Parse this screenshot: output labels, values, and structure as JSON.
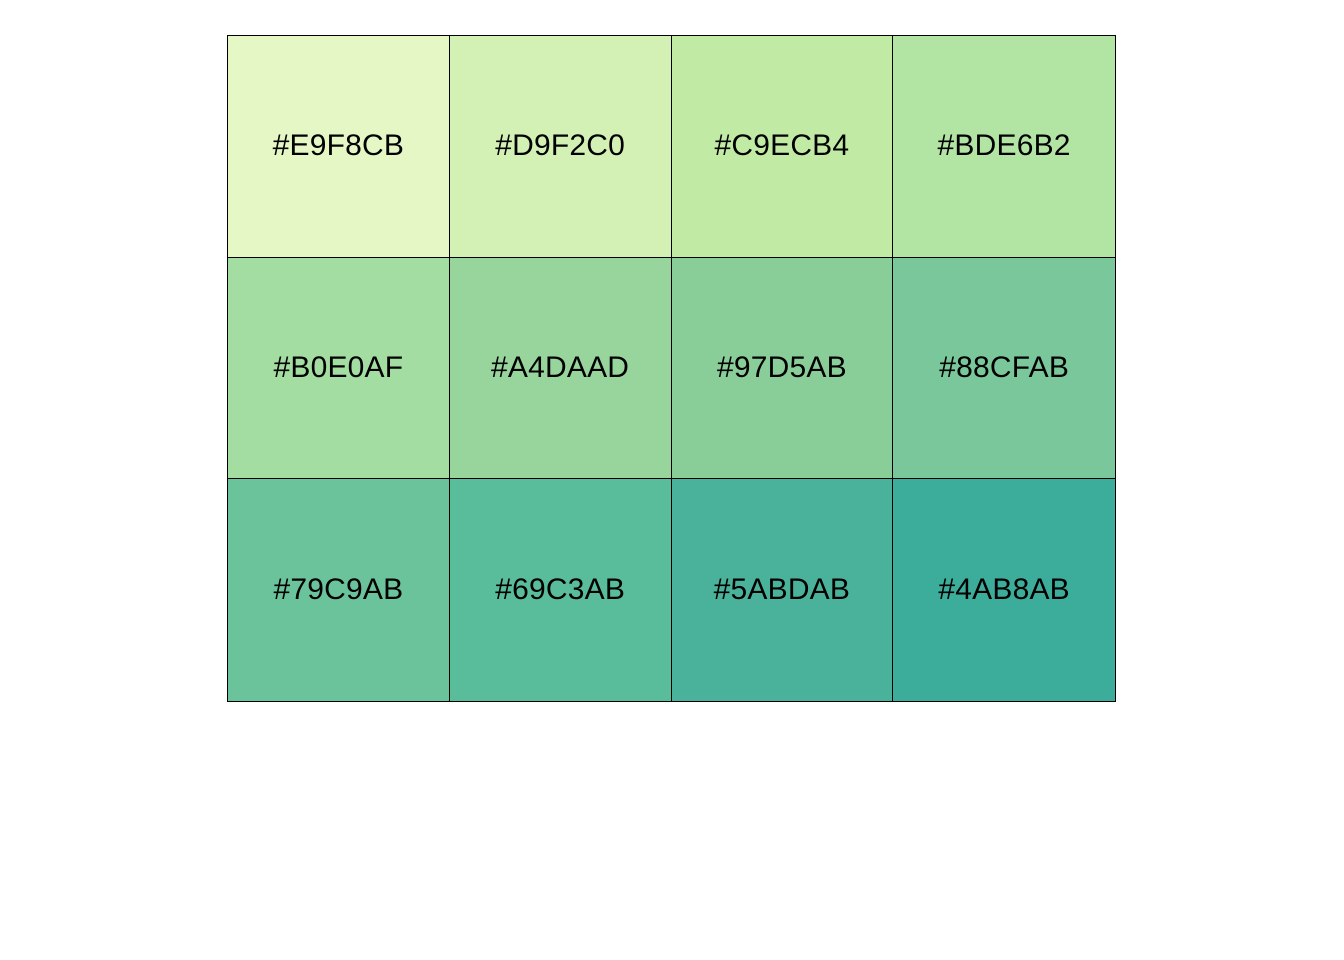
{
  "palette": {
    "swatches": [
      {
        "label": "#E9F8CB",
        "color": "#E5F7C4"
      },
      {
        "label": "#D9F2C0",
        "color": "#D3F1B4"
      },
      {
        "label": "#C9ECB4",
        "color": "#C1EBA5"
      },
      {
        "label": "#BDE6B2",
        "color": "#B2E5A3"
      },
      {
        "label": "#B0E0AF",
        "color": "#A4DDA2"
      },
      {
        "label": "#A4DAAD",
        "color": "#97D59C"
      },
      {
        "label": "#97D5AB",
        "color": "#89CD98"
      },
      {
        "label": "#88CFAB",
        "color": "#79C79A"
      },
      {
        "label": "#79C9AB",
        "color": "#6BC39C"
      },
      {
        "label": "#69C3AB",
        "color": "#59BC9A"
      },
      {
        "label": "#5ABDAB",
        "color": "#4AB29A"
      },
      {
        "label": "#4AB8AB",
        "color": "#3CAD9B"
      }
    ]
  }
}
